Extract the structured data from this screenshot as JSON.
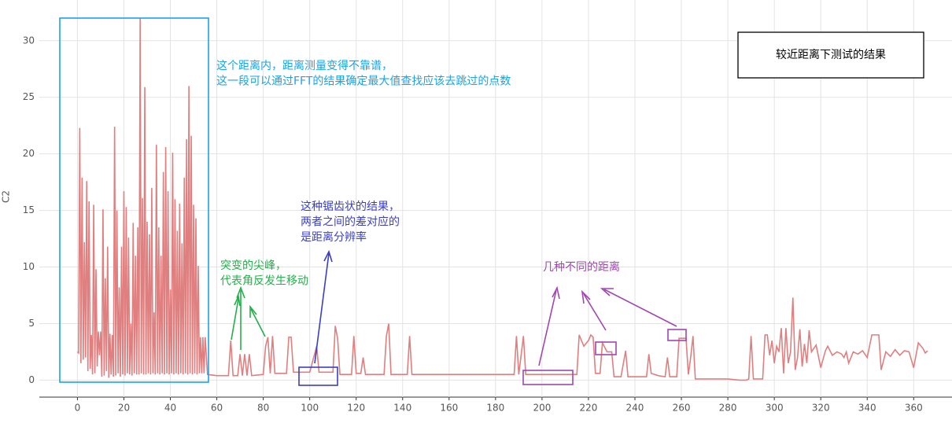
{
  "chart_data": {
    "type": "line",
    "y_label": "C2",
    "legend_box": "较近距离下测试的结果",
    "annotations": [
      {
        "lines": [
          "这个距离内，距离测量变得不靠谱，",
          "这一段可以通过FFT的结果确定最大值查找应该去跳过的点数"
        ],
        "color": "#1aa3e6"
      },
      {
        "lines": [
          "这种锯齿状的结果，",
          "两者之间的差对应的",
          "是距离分辨率"
        ],
        "color": "#3b3fc4"
      },
      {
        "lines": [
          "突变的尖峰，",
          "代表角反发生移动"
        ],
        "color": "#22b04a"
      },
      {
        "lines": [
          "几种不同的距离"
        ],
        "color": "#a046b0"
      }
    ],
    "xlim": [
      -16.4,
      376.5
    ],
    "ylim": [
      -1.5,
      33.6
    ],
    "xticks": [
      0,
      20,
      40,
      60,
      80,
      100,
      120,
      140,
      160,
      180,
      200,
      220,
      240,
      260,
      280,
      300,
      320,
      340,
      360
    ],
    "yticks": [
      0,
      5,
      10,
      15,
      20,
      25,
      30
    ],
    "grid": true,
    "series": [
      {
        "color": "#e07f7f",
        "x": [
          0,
          0.5,
          1,
          1.5,
          2,
          2.5,
          3,
          3.5,
          4,
          4.5,
          5,
          5.5,
          6,
          6.5,
          7,
          7.5,
          8,
          8.5,
          9,
          9.5,
          10,
          10.5,
          11,
          11.5,
          12,
          12.5,
          13,
          13.5,
          14,
          14.5,
          15,
          15.5,
          16,
          16.5,
          17,
          17.5,
          18,
          18.5,
          19,
          19.5,
          20,
          20.5,
          21,
          21.5,
          22,
          22.5,
          23,
          23.5,
          24,
          24.5,
          25,
          25.5,
          26,
          26.5,
          27,
          27.5,
          28,
          28.5,
          29,
          29.5,
          30,
          30.5,
          31,
          31.5,
          32,
          32.5,
          33,
          33.5,
          34,
          34.5,
          35,
          35.5,
          36,
          36.5,
          37,
          37.5,
          38,
          38.5,
          39,
          39.5,
          40,
          40.5,
          41,
          41.5,
          42,
          42.5,
          43,
          43.5,
          44,
          44.5,
          45,
          45.5,
          46,
          46.5,
          47,
          47.5,
          48,
          48.5,
          49,
          49.5,
          50,
          50.5,
          51,
          51.5,
          52,
          52.5,
          53,
          53.5,
          54,
          54.5,
          55,
          56,
          60,
          65,
          66,
          67,
          69,
          70,
          71,
          72,
          73,
          74,
          75,
          80,
          81,
          82,
          83,
          84,
          85,
          90,
          91,
          92,
          93,
          100,
          103,
          104,
          110,
          111,
          112,
          113,
          118,
          119,
          120,
          122,
          123,
          124,
          132,
          133,
          134,
          135,
          142,
          143,
          144,
          150,
          170,
          188,
          189,
          190,
          192,
          193,
          200,
          213,
          215,
          216,
          218,
          220,
          221,
          222,
          223,
          225,
          226,
          228,
          230,
          231,
          234,
          236,
          237,
          245,
          246,
          247,
          250,
          253,
          254,
          255,
          258,
          259,
          262,
          263,
          264,
          265,
          266,
          270,
          280,
          285,
          288,
          289,
          290,
          291,
          295,
          296,
          297,
          298,
          299,
          300,
          301,
          302,
          303,
          304,
          305,
          306,
          307,
          308,
          309,
          310,
          311,
          312,
          313,
          314,
          315,
          316,
          318,
          320,
          322,
          323,
          325,
          327,
          329,
          330,
          331,
          332,
          334,
          336,
          338,
          340,
          342,
          345,
          346,
          348,
          350,
          352,
          354,
          356,
          358,
          360,
          362,
          364,
          365,
          366
        ],
        "values": [
          2.5,
          2.4,
          22.3,
          1.5,
          17.9,
          1.8,
          12.2,
          2.0,
          17.6,
          0.8,
          15.8,
          1.0,
          4.0,
          0.5,
          15.5,
          0.6,
          9.8,
          1.2,
          4.3,
          2.2,
          4.3,
          0.3,
          15.1,
          0.4,
          9.0,
          0.8,
          11.8,
          0.2,
          4.1,
          0.5,
          4.0,
          0.3,
          22.4,
          0.4,
          15.0,
          0.6,
          8.2,
          0.3,
          11.8,
          0.5,
          16.7,
          0.4,
          15.3,
          0.6,
          12.6,
          0.5,
          5.0,
          0.4,
          13.9,
          0.6,
          11.0,
          0.5,
          13.5,
          0.5,
          32.0,
          0.6,
          16.1,
          0.5,
          25.9,
          0.5,
          14.0,
          0.6,
          12.9,
          0.5,
          17.0,
          0.6,
          6.0,
          0.5,
          20.8,
          0.6,
          13.5,
          0.5,
          11.0,
          0.6,
          18.4,
          0.5,
          20.6,
          0.6,
          16.7,
          0.5,
          8.0,
          0.6,
          20.1,
          0.5,
          16.0,
          0.6,
          13.2,
          0.5,
          15.6,
          0.6,
          12.1,
          0.5,
          17.9,
          0.6,
          21.3,
          0.5,
          26.0,
          0.6,
          21.6,
          0.5,
          15.5,
          0.6,
          14.3,
          0.5,
          10.1,
          0.6,
          3.8,
          0.6,
          3.8,
          0.6,
          3.8,
          0.5,
          0.4,
          0.4,
          3.5,
          0.4,
          0.4,
          2.3,
          0.4,
          2.3,
          0.4,
          2.3,
          0.4,
          0.5,
          3.0,
          3.8,
          0.6,
          3.9,
          0.6,
          0.6,
          3.8,
          3.8,
          0.7,
          0.7,
          3.0,
          0.7,
          0.7,
          4.8,
          3.7,
          0.5,
          0.5,
          3.9,
          0.6,
          0.6,
          2.0,
          0.5,
          0.5,
          3.9,
          5.0,
          0.5,
          0.5,
          3.9,
          0.5,
          0.5,
          0.5,
          0.5,
          3.9,
          0.5,
          3.9,
          0.5,
          0.5,
          0.5,
          0.5,
          4.0,
          3.0,
          3.5,
          4.0,
          3.8,
          0.6,
          0.6,
          3.3,
          2.5,
          2.5,
          0.3,
          0.3,
          2.6,
          0.3,
          0.3,
          2.3,
          0.6,
          0.4,
          0.3,
          2.0,
          0.3,
          0.3,
          3.7,
          3.7,
          0.5,
          2.0,
          3.9,
          0.1,
          0.1,
          0.1,
          0.0,
          0.0,
          0.1,
          3.9,
          0.1,
          0.1,
          4.0,
          4.0,
          2.2,
          3.5,
          1.5,
          3.0,
          2.5,
          4.6,
          0.6,
          4.6,
          1.5,
          2.5,
          7.3,
          0.9,
          2.0,
          4.5,
          1.2,
          3.2,
          1.5,
          4.4,
          2.5,
          3.1,
          1.1,
          2.6,
          3.0,
          2.2,
          2.5,
          2.3,
          2.0,
          2.5,
          1.5,
          2.5,
          2.3,
          2.6,
          2.0,
          4.0,
          4.0,
          0.9,
          2.5,
          2.1,
          2.7,
          2.2,
          2.6,
          2.5,
          1.1,
          3.3,
          2.8,
          2.4,
          2.6
        ]
      }
    ]
  }
}
